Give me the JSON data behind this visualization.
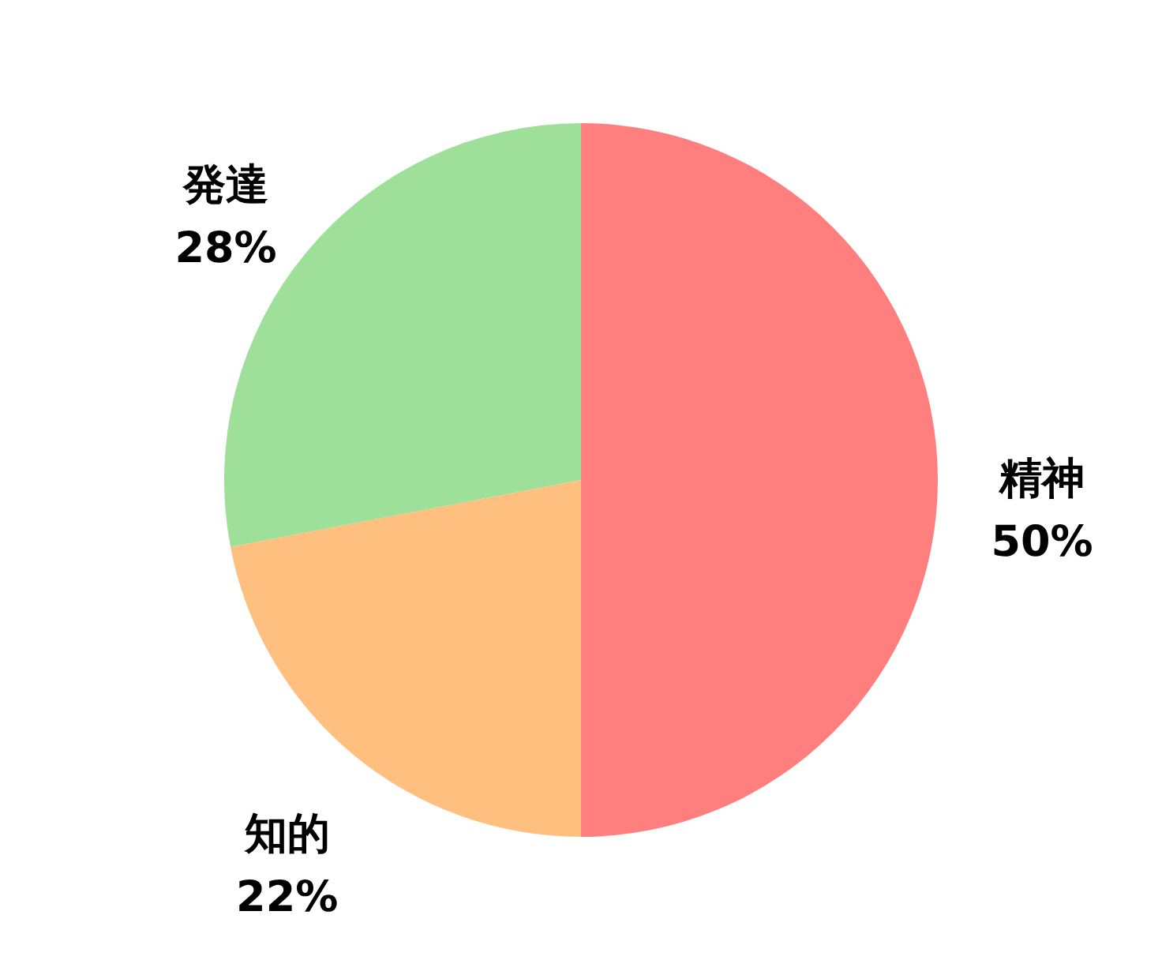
{
  "chart_data": {
    "type": "pie",
    "categories": [
      "精神",
      "知的",
      "発達"
    ],
    "values": [
      50,
      22,
      28
    ],
    "colors": [
      "#ff7f7f",
      "#ffbf7f",
      "#9edf9a"
    ],
    "value_labels": [
      "50%",
      "22%",
      "28%"
    ]
  }
}
